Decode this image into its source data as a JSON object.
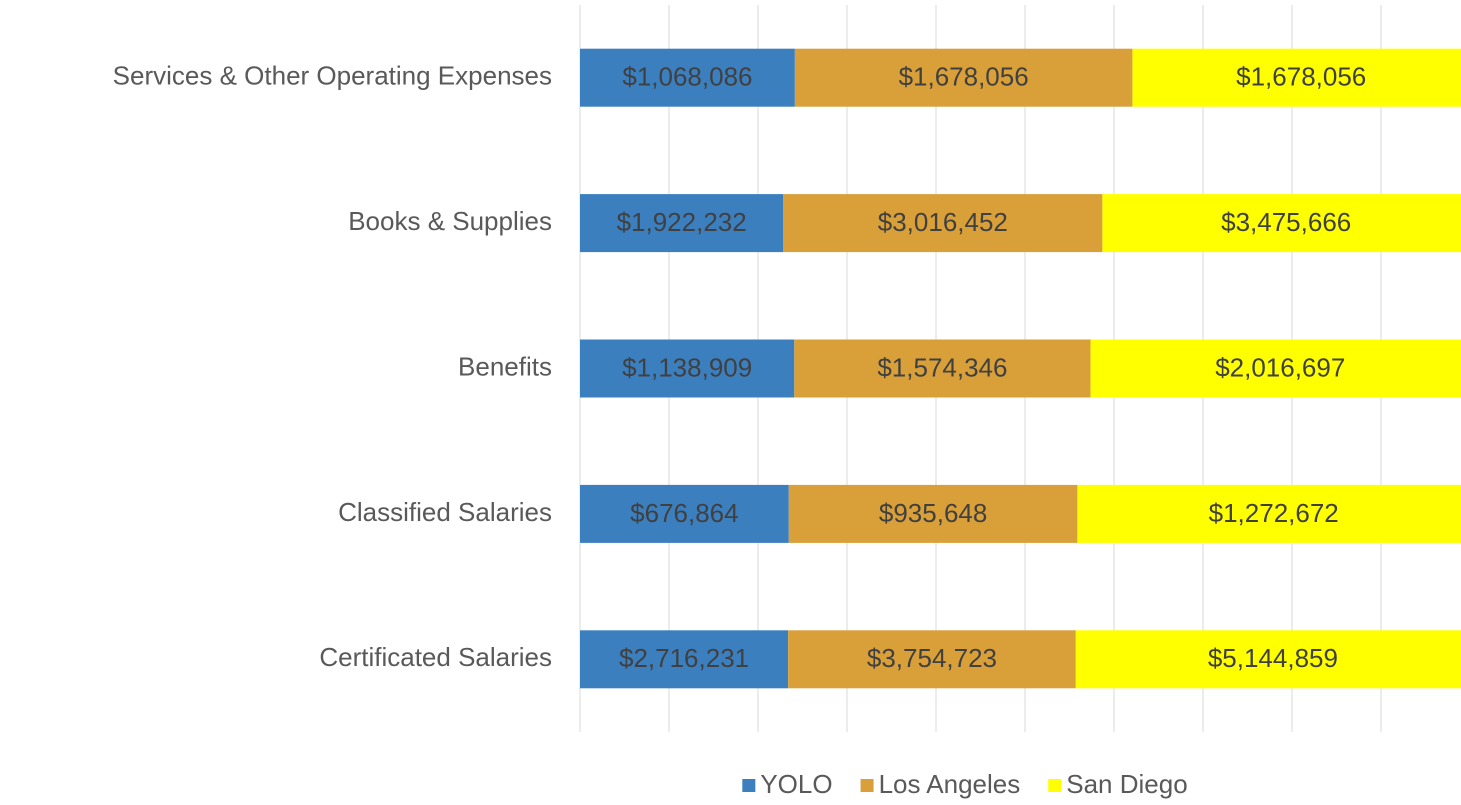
{
  "chart_data": {
    "type": "bar",
    "orientation": "horizontal",
    "stacking": "percent",
    "categories": [
      "Services & Other Operating Expenses",
      "Books & Supplies",
      "Benefits",
      "Classified Salaries",
      "Certificated Salaries"
    ],
    "series": [
      {
        "name": "YOLO",
        "color": "#3c7fbf",
        "values": [
          1068086,
          1922232,
          1138909,
          676864,
          2716231
        ],
        "value_labels": [
          "$1,068,086",
          "$1,922,232",
          "$1,138,909",
          "$676,864",
          "$2,716,231"
        ]
      },
      {
        "name": "Los Angeles",
        "color": "#d9a03a",
        "values": [
          1678056,
          3016452,
          1574346,
          935648,
          3754723
        ],
        "value_labels": [
          "$1,678,056",
          "$3,016,452",
          "$1,574,346",
          "$935,648",
          "$3,754,723"
        ]
      },
      {
        "name": "San Diego",
        "color": "#ffff00",
        "values": [
          1678056,
          3475666,
          2016697,
          1272672,
          5144859
        ],
        "value_labels": [
          "$1,678,056",
          "$3,475,666",
          "$2,016,697",
          "$1,272,672",
          "$5,144,859"
        ]
      }
    ],
    "xlim": [
      0,
      100
    ],
    "xticks": [
      0,
      10,
      20,
      30,
      40,
      50,
      60,
      70,
      80,
      90,
      100
    ],
    "show_tick_labels": false,
    "grid": true,
    "legend": "bottom"
  }
}
